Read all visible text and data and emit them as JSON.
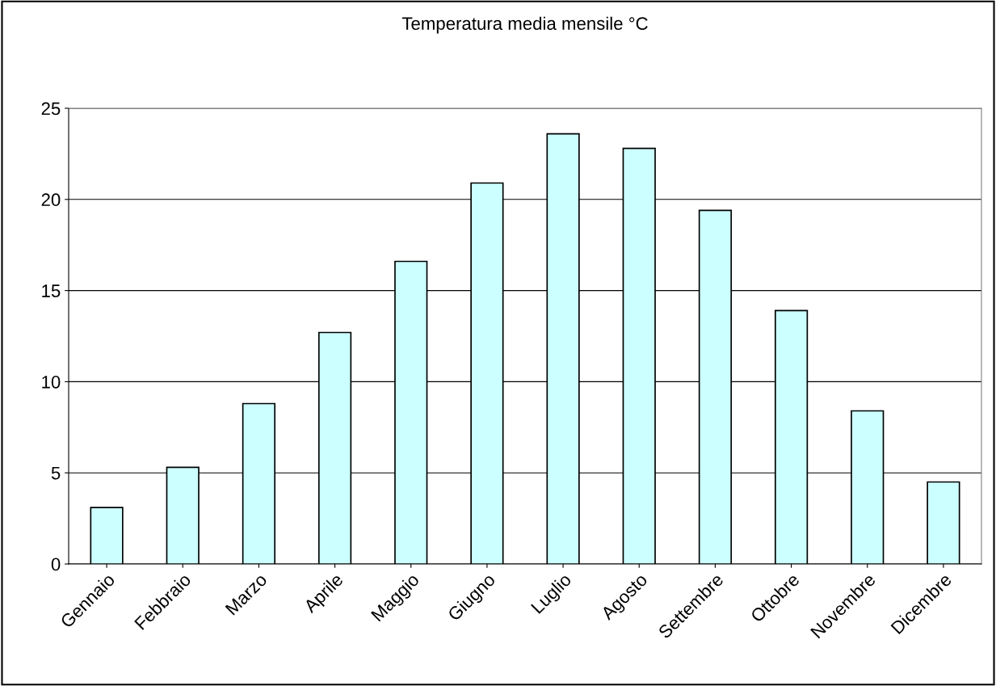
{
  "chart_data": {
    "type": "bar",
    "title": "Temperatura media mensile °C",
    "categories": [
      "Gennaio",
      "Febbraio",
      "Marzo",
      "Aprile",
      "Maggio",
      "Giugno",
      "Luglio",
      "Agosto",
      "Settembre",
      "Ottobre",
      "Novembre",
      "Dicembre"
    ],
    "values": [
      3.1,
      5.3,
      8.8,
      12.7,
      16.6,
      20.9,
      23.6,
      22.8,
      19.4,
      13.9,
      8.4,
      4.5
    ],
    "color": "#ccffff",
    "ylim": [
      0,
      25
    ],
    "yticks": [
      0,
      5,
      10,
      15,
      20,
      25
    ],
    "grid": "y"
  }
}
